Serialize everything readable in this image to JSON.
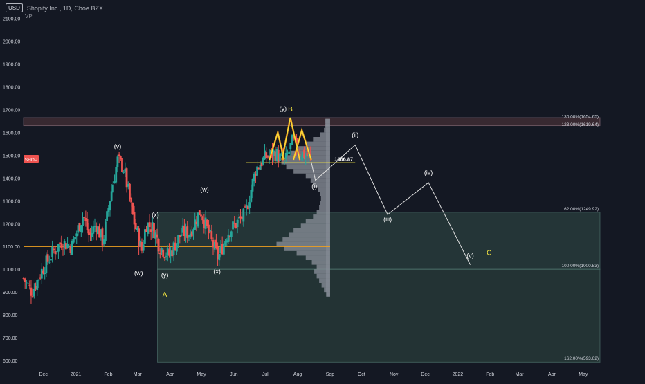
{
  "header": {
    "currency": "USD",
    "symbol": "Shopify Inc., 1D, Cboe BZX",
    "indicator": "VP"
  },
  "colors": {
    "background": "#141823",
    "up": "#26a69a",
    "down": "#ef5350",
    "axis_text": "#d1d4dc",
    "fib_zone": "#2f4a44",
    "resistance_zone": "#3a2a33",
    "orange_line": "#f0a020",
    "yellow_line": "#f5e642",
    "wave_line": "#e0e0e0",
    "volume_profile": "#8c919c",
    "wave_label": "#ffffff",
    "corrective_label": "#f5e642",
    "price_badge": "#ef5350"
  },
  "chart_data": {
    "type": "candlestick",
    "title": "Shopify Inc., 1D, Cboe BZX",
    "currency": "USD",
    "y_ticks": [
      "2100.00",
      "2000.00",
      "1900.00",
      "1800.00",
      "1700.00",
      "1600.00",
      "1500.00",
      "1400.00",
      "1300.00",
      "1200.00",
      "1100.00",
      "1000.00",
      "900.00",
      "800.00",
      "700.00",
      "600.00"
    ],
    "ylim": [
      585,
      2120
    ],
    "x_ticks": [
      {
        "label": "Dec",
        "date": "2020-12-01"
      },
      {
        "label": "2021",
        "date": "2021-01-01"
      },
      {
        "label": "Feb",
        "date": "2021-02-01"
      },
      {
        "label": "Mar",
        "date": "2021-03-01"
      },
      {
        "label": "Apr",
        "date": "2021-04-01"
      },
      {
        "label": "May",
        "date": "2021-05-01"
      },
      {
        "label": "Jun",
        "date": "2021-06-01"
      },
      {
        "label": "Jul",
        "date": "2021-07-01"
      },
      {
        "label": "Aug",
        "date": "2021-08-01"
      },
      {
        "label": "Sep",
        "date": "2021-09-01"
      },
      {
        "label": "Oct",
        "date": "2021-10-01"
      },
      {
        "label": "Nov",
        "date": "2021-11-01"
      },
      {
        "label": "Dec",
        "date": "2021-12-01"
      },
      {
        "label": "2022",
        "date": "2022-01-01"
      },
      {
        "label": "Feb",
        "date": "2022-02-01"
      },
      {
        "label": "Mar",
        "date": "2022-03-01"
      },
      {
        "label": "Apr",
        "date": "2022-04-01"
      },
      {
        "label": "May",
        "date": "2022-05-01"
      }
    ],
    "xlim": [
      "2020-11-12",
      "2022-05-17"
    ],
    "price_path": [
      [
        "2020-11-12",
        960
      ],
      [
        "2020-11-20",
        900
      ],
      [
        "2020-11-30",
        1000
      ],
      [
        "2020-12-08",
        1060
      ],
      [
        "2020-12-18",
        1120
      ],
      [
        "2020-12-28",
        1100
      ],
      [
        "2021-01-08",
        1240
      ],
      [
        "2021-01-14",
        1140
      ],
      [
        "2021-01-20",
        1200
      ],
      [
        "2021-01-27",
        1120
      ],
      [
        "2021-02-03",
        1320
      ],
      [
        "2021-02-10",
        1480
      ],
      [
        "2021-02-16",
        1440
      ],
      [
        "2021-02-25",
        1220
      ],
      [
        "2021-03-05",
        1080
      ],
      [
        "2021-03-09",
        1200
      ],
      [
        "2021-03-16",
        1180
      ],
      [
        "2021-03-22",
        1100
      ],
      [
        "2021-03-31",
        1060
      ],
      [
        "2021-04-12",
        1160
      ],
      [
        "2021-04-20",
        1160
      ],
      [
        "2021-04-30",
        1260
      ],
      [
        "2021-05-10",
        1130
      ],
      [
        "2021-05-17",
        1050
      ],
      [
        "2021-05-26",
        1160
      ],
      [
        "2021-06-03",
        1200
      ],
      [
        "2021-06-12",
        1240
      ],
      [
        "2021-06-22",
        1440
      ],
      [
        "2021-07-01",
        1490
      ],
      [
        "2021-07-10",
        1510
      ],
      [
        "2021-07-20",
        1470
      ],
      [
        "2021-07-27",
        1560
      ],
      [
        "2021-08-03",
        1510
      ],
      [
        "2021-08-10",
        1500
      ],
      [
        "2021-08-14",
        1470
      ]
    ],
    "volume_profile": {
      "price_range": [
        880,
        1660
      ],
      "x_right": "2021-09-01",
      "bins": [
        [
          890,
          6
        ],
        [
          910,
          10
        ],
        [
          930,
          14
        ],
        [
          950,
          18
        ],
        [
          970,
          22
        ],
        [
          990,
          26
        ],
        [
          1010,
          22
        ],
        [
          1030,
          30
        ],
        [
          1050,
          40
        ],
        [
          1070,
          55
        ],
        [
          1090,
          75
        ],
        [
          1110,
          88
        ],
        [
          1130,
          78
        ],
        [
          1150,
          68
        ],
        [
          1170,
          60
        ],
        [
          1190,
          48
        ],
        [
          1210,
          40
        ],
        [
          1230,
          28
        ],
        [
          1250,
          22
        ],
        [
          1270,
          18
        ],
        [
          1290,
          16
        ],
        [
          1310,
          15
        ],
        [
          1330,
          16
        ],
        [
          1350,
          20
        ],
        [
          1370,
          28
        ],
        [
          1390,
          32
        ],
        [
          1410,
          40
        ],
        [
          1430,
          60
        ],
        [
          1450,
          72
        ],
        [
          1470,
          80
        ],
        [
          1490,
          74
        ],
        [
          1510,
          65
        ],
        [
          1530,
          52
        ],
        [
          1550,
          40
        ],
        [
          1570,
          28
        ],
        [
          1590,
          16
        ],
        [
          1610,
          10
        ],
        [
          1630,
          8
        ],
        [
          1650,
          8
        ]
      ]
    },
    "horizontal_lines": [
      {
        "name": "orange-support",
        "price": 1100,
        "from": "2020-11-12",
        "to": "2021-09-01",
        "color": "orange"
      },
      {
        "name": "yellow-support",
        "price": 1466.87,
        "from": "2021-06-13",
        "to": "2021-09-25",
        "color": "yellow",
        "label": "1466.87"
      }
    ],
    "resistance_zone": {
      "from": "2020-11-12",
      "to": "2022-05-17",
      "top": 1665,
      "bottom": 1630
    },
    "fib_zones": [
      {
        "from": "2021-03-20",
        "to": "2022-05-17",
        "top": 1250,
        "bottom": 1000
      },
      {
        "from": "2021-03-20",
        "to": "2022-05-17",
        "top": 1000,
        "bottom": 593
      }
    ],
    "fib_levels": [
      {
        "label": "130.00%(1654.65)",
        "price": 1654.65
      },
      {
        "label": "123.00%(1619.64)",
        "price": 1619.64
      },
      {
        "label": "62.00%(1249.92)",
        "price": 1249.92
      },
      {
        "label": "100.00%(1000.53)",
        "price": 1000.53
      },
      {
        "label": "162.00%(593.62)",
        "price": 593.62
      }
    ],
    "triangles": [
      [
        [
          "2021-07-05",
          1480
        ],
        [
          "2021-07-13",
          1600
        ],
        [
          "2021-07-19",
          1480
        ]
      ],
      [
        [
          "2021-07-17",
          1480
        ],
        [
          "2021-07-25",
          1665
        ],
        [
          "2021-08-03",
          1480
        ]
      ],
      [
        [
          "2021-07-28",
          1480
        ],
        [
          "2021-08-05",
          1610
        ],
        [
          "2021-08-14",
          1480
        ]
      ]
    ],
    "projection_path": [
      [
        "2021-08-14",
        1470
      ],
      [
        "2021-08-18",
        1390
      ],
      [
        "2021-09-25",
        1545
      ],
      [
        "2021-10-26",
        1240
      ],
      [
        "2021-12-04",
        1380
      ],
      [
        "2022-01-13",
        1020
      ]
    ],
    "wave_labels": [
      {
        "text": "(v)",
        "date": "2021-02-10",
        "price": 1530,
        "color": "white"
      },
      {
        "text": "(x)",
        "date": "2021-03-18",
        "price": 1230,
        "color": "white"
      },
      {
        "text": "(w)",
        "date": "2021-03-02",
        "price": 975,
        "color": "white"
      },
      {
        "text": "(y)",
        "date": "2021-03-27",
        "price": 965,
        "color": "white"
      },
      {
        "text": "A",
        "date": "2021-03-27",
        "price": 880,
        "color": "yellow"
      },
      {
        "text": "(w)",
        "date": "2021-05-04",
        "price": 1340,
        "color": "white"
      },
      {
        "text": "(x)",
        "date": "2021-05-16",
        "price": 982,
        "color": "white"
      },
      {
        "text": "(y)",
        "date": "2021-07-18",
        "price": 1695,
        "color": "white"
      },
      {
        "text": "B",
        "date": "2021-07-25",
        "price": 1692,
        "color": "yellow"
      },
      {
        "text": "(i)",
        "date": "2021-08-17",
        "price": 1355,
        "color": "white"
      },
      {
        "text": "(ii)",
        "date": "2021-09-25",
        "price": 1580,
        "color": "white"
      },
      {
        "text": "(iii)",
        "date": "2021-10-26",
        "price": 1210,
        "color": "white"
      },
      {
        "text": "(iv)",
        "date": "2021-12-04",
        "price": 1415,
        "color": "white"
      },
      {
        "text": "(v)",
        "date": "2022-01-13",
        "price": 1050,
        "color": "white"
      },
      {
        "text": "C",
        "date": "2022-01-31",
        "price": 1063,
        "color": "yellow"
      }
    ],
    "price_badge": {
      "text": "SHOP",
      "price": 1483
    }
  }
}
